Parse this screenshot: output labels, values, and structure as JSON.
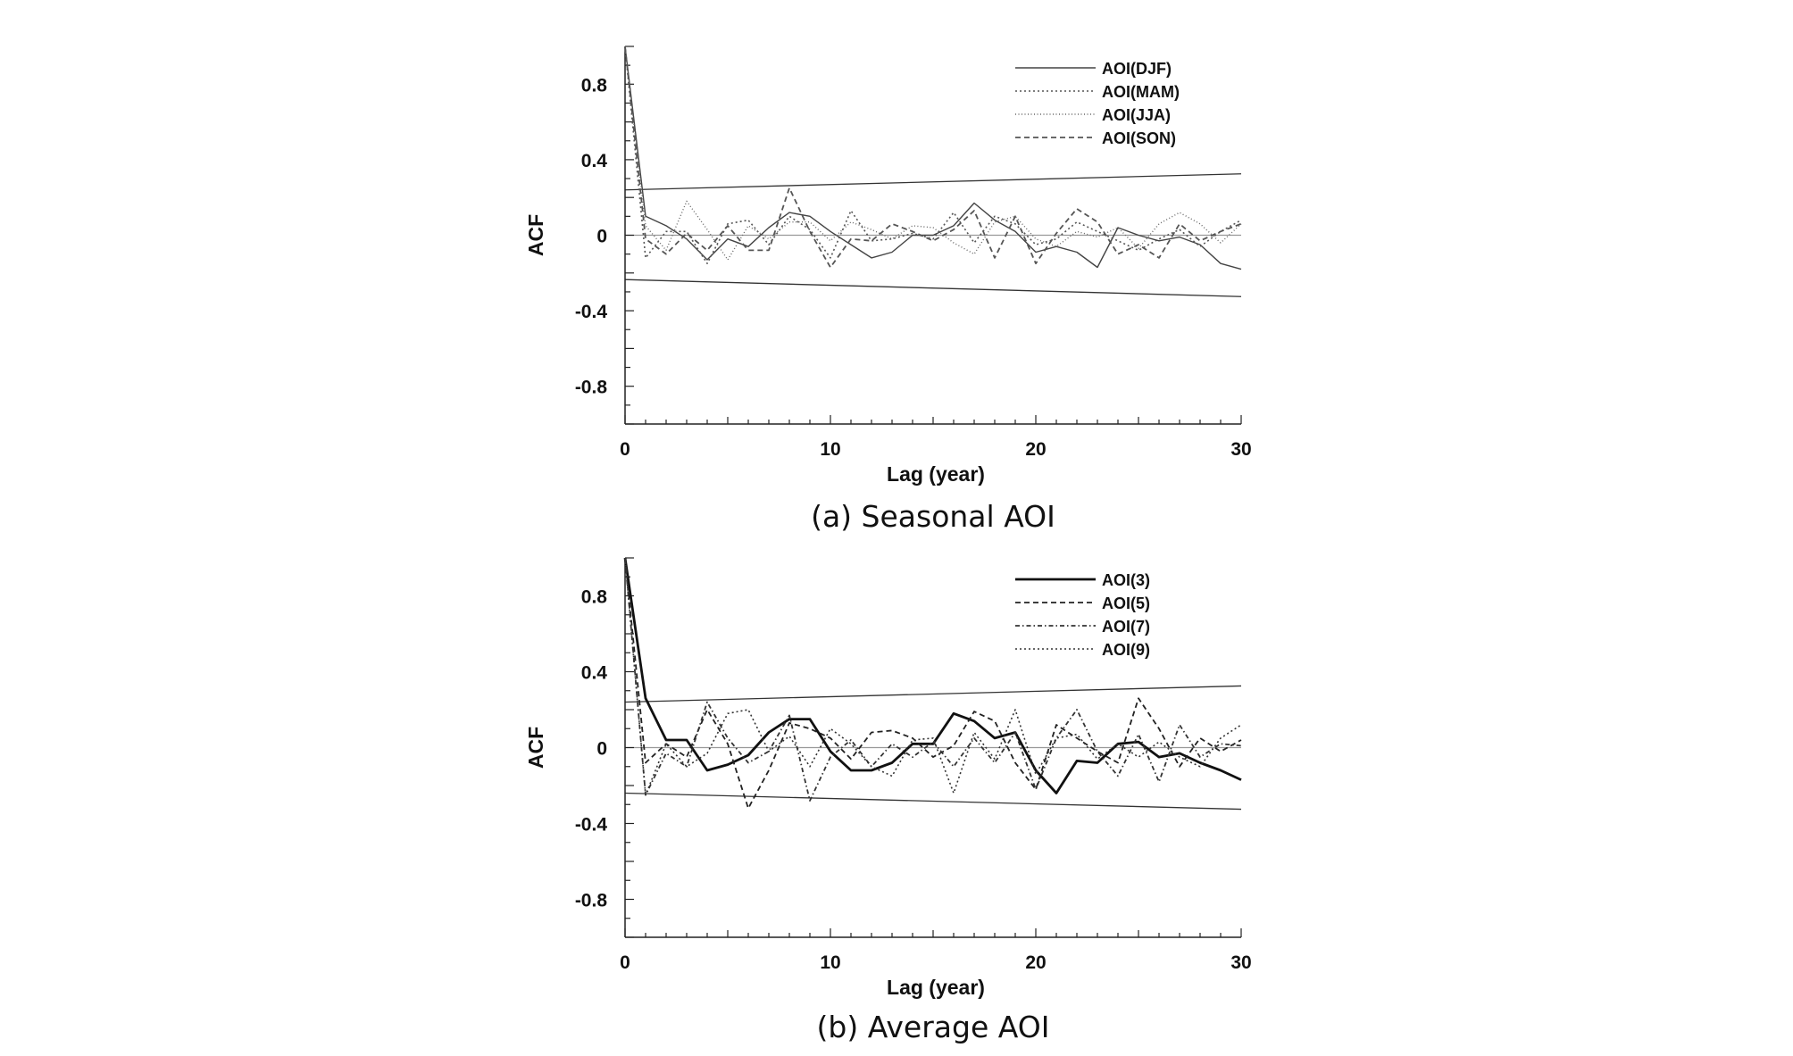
{
  "chart_data": [
    {
      "type": "line",
      "caption": "(a) Seasonal AOI",
      "xlabel": "Lag (year)",
      "ylabel": "ACF",
      "xlim": [
        0,
        30
      ],
      "ylim": [
        -1,
        1
      ],
      "xticks": [
        0,
        10,
        20,
        30
      ],
      "xtick_labels": [
        "0",
        "10",
        "20",
        "30"
      ],
      "yticks": [
        0.8,
        0.4,
        0,
        -0.4,
        -0.8
      ],
      "ytick_labels": [
        "0.8",
        "0.4",
        "0",
        "-0.4",
        "-0.8"
      ],
      "x": [
        0,
        1,
        2,
        3,
        4,
        5,
        6,
        7,
        8,
        9,
        10,
        11,
        12,
        13,
        14,
        15,
        16,
        17,
        18,
        19,
        20,
        21,
        22,
        23,
        24,
        25,
        26,
        27,
        28,
        29,
        30
      ],
      "confidence_upper": [
        [
          0,
          0.24
        ],
        [
          30,
          0.325
        ]
      ],
      "confidence_lower": [
        [
          0,
          -0.235
        ],
        [
          30,
          -0.325
        ]
      ],
      "series": [
        {
          "name": "AOI(DJF)",
          "style": "solid-thin",
          "color": "#444444",
          "values": [
            1,
            0.1,
            0.05,
            -0.02,
            -0.13,
            -0.02,
            -0.06,
            0.04,
            0.12,
            0.1,
            0.02,
            -0.05,
            -0.12,
            -0.09,
            0,
            0,
            0.05,
            0.17,
            0.08,
            0.02,
            -0.09,
            -0.06,
            -0.09,
            -0.17,
            0.04,
            0,
            -0.03,
            -0.01,
            -0.05,
            -0.15,
            -0.18
          ]
        },
        {
          "name": "AOI(MAM)",
          "style": "dotted",
          "color": "#555555",
          "values": [
            1,
            -0.12,
            0.02,
            0.02,
            -0.15,
            0.06,
            0.08,
            -0.05,
            0.1,
            0.03,
            -0.12,
            0.13,
            -0.03,
            -0.02,
            0.01,
            -0.02,
            0.12,
            -0.04,
            0.1,
            0.06,
            -0.05,
            -0.02,
            0.07,
            0.02,
            -0.03,
            -0.08,
            -0.02,
            0.03,
            -0.06,
            0.02,
            0.08
          ]
        },
        {
          "name": "AOI(JJA)",
          "style": "dotted-fine",
          "color": "#666666",
          "values": [
            1,
            0.05,
            -0.08,
            0.18,
            0.03,
            -0.13,
            0.05,
            -0.02,
            0.07,
            0.07,
            -0.03,
            0.07,
            0.03,
            -0.02,
            0.05,
            0.04,
            -0.04,
            -0.1,
            0.07,
            0.1,
            -0.02,
            -0.06,
            0.02,
            -0.01,
            0.04,
            -0.07,
            0.06,
            0.12,
            0.06,
            -0.04,
            0.06
          ]
        },
        {
          "name": "AOI(SON)",
          "style": "dashed",
          "color": "#555555",
          "values": [
            1,
            -0.02,
            -0.1,
            0.01,
            -0.08,
            0.05,
            -0.08,
            -0.08,
            0.25,
            0.02,
            -0.17,
            -0.02,
            -0.03,
            0.06,
            0.02,
            -0.03,
            0.03,
            0.13,
            -0.12,
            0.1,
            -0.15,
            0.01,
            0.14,
            0.07,
            -0.1,
            -0.05,
            -0.12,
            0.06,
            -0.03,
            0.02,
            0.06
          ]
        }
      ],
      "legend": [
        "AOI(DJF)",
        "AOI(MAM)",
        "AOI(JJA)",
        "AOI(SON)"
      ]
    },
    {
      "type": "line",
      "caption": "(b) Average AOI",
      "xlabel": "Lag (year)",
      "ylabel": "ACF",
      "xlim": [
        0,
        30
      ],
      "ylim": [
        -1,
        1
      ],
      "xticks": [
        0,
        10,
        20,
        30
      ],
      "xtick_labels": [
        "0",
        "10",
        "20",
        "30"
      ],
      "yticks": [
        0.8,
        0.4,
        0,
        -0.4,
        -0.8
      ],
      "ytick_labels": [
        "0.8",
        "0.4",
        "0",
        "-0.4",
        "-0.8"
      ],
      "x": [
        0,
        1,
        2,
        3,
        4,
        5,
        6,
        7,
        8,
        9,
        10,
        11,
        12,
        13,
        14,
        15,
        16,
        17,
        18,
        19,
        20,
        21,
        22,
        23,
        24,
        25,
        26,
        27,
        28,
        29,
        30
      ],
      "confidence_upper": [
        [
          0,
          0.24
        ],
        [
          30,
          0.325
        ]
      ],
      "confidence_lower": [
        [
          0,
          -0.24
        ],
        [
          30,
          -0.325
        ]
      ],
      "series": [
        {
          "name": "AOI(3)",
          "style": "solid-bold",
          "color": "#111111",
          "values": [
            1,
            0.26,
            0.04,
            0.04,
            -0.12,
            -0.09,
            -0.04,
            0.08,
            0.15,
            0.15,
            -0.02,
            -0.12,
            -0.12,
            -0.08,
            0.02,
            0.02,
            0.18,
            0.14,
            0.05,
            0.08,
            -0.12,
            -0.24,
            -0.07,
            -0.08,
            0.02,
            0.03,
            -0.05,
            -0.03,
            -0.08,
            -0.12,
            -0.17
          ]
        },
        {
          "name": "AOI(5)",
          "style": "dashed",
          "color": "#222222",
          "values": [
            1,
            -0.08,
            0.02,
            -0.05,
            0.2,
            0.02,
            -0.32,
            -0.12,
            0.13,
            0.1,
            0.05,
            -0.06,
            0.08,
            0.09,
            0.05,
            -0.05,
            0.01,
            0.19,
            0.14,
            -0.08,
            -0.22,
            0.12,
            0.05,
            -0.02,
            -0.08,
            0.26,
            0.1,
            -0.1,
            0.05,
            -0.02,
            0.04
          ]
        },
        {
          "name": "AOI(7)",
          "style": "dash-dot",
          "color": "#333333",
          "values": [
            1,
            -0.25,
            -0.03,
            -0.1,
            0.24,
            0.05,
            -0.08,
            -0.02,
            0.17,
            -0.28,
            -0.05,
            0.04,
            -0.1,
            0.02,
            -0.05,
            0.03,
            -0.1,
            0.05,
            -0.08,
            0.08,
            -0.22,
            0.05,
            0.2,
            -0.02,
            -0.15,
            0.07,
            -0.18,
            0.12,
            -0.05,
            0.02,
            0.01
          ]
        },
        {
          "name": "AOI(9)",
          "style": "dotted",
          "color": "#333333",
          "values": [
            1,
            -0.25,
            0.02,
            -0.1,
            -0.03,
            0.18,
            0.2,
            -0.02,
            0.06,
            -0.1,
            0.1,
            0.02,
            -0.1,
            -0.15,
            0.04,
            0.05,
            -0.24,
            0.08,
            -0.06,
            0.2,
            -0.14,
            0.05,
            0.07,
            -0.06,
            0.02,
            -0.05,
            0.03,
            -0.05,
            -0.1,
            0.05,
            0.12
          ]
        }
      ],
      "legend": [
        "AOI(3)",
        "AOI(5)",
        "AOI(7)",
        "AOI(9)"
      ]
    }
  ]
}
